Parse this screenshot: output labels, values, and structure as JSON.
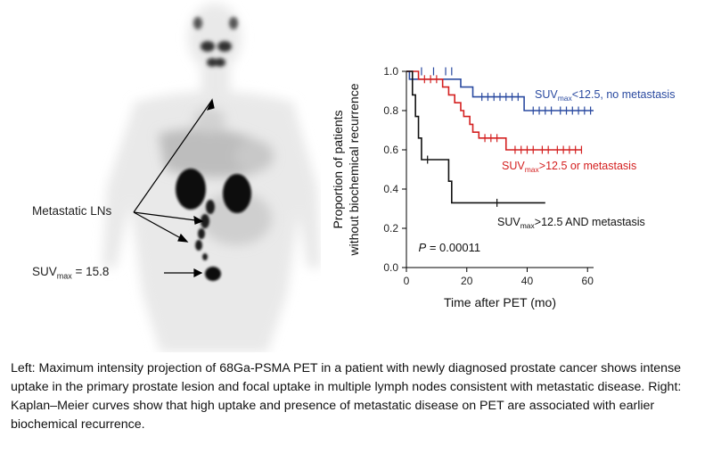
{
  "figure": {
    "left_panel": {
      "metastatic_label": "Metastatic LNs",
      "suv_label_main": "SUV",
      "suv_label_sub": "max",
      "suv_label_value": " = 15.8"
    },
    "caption": "Left: Maximum intensity projection of 68Ga-PSMA PET in a patient with newly diagnosed prostate cancer shows intense uptake in the primary prostate lesion and focal uptake in multiple lymph nodes consistent with metastatic disease. Right: Kaplan–Meier curves show that high uptake and presence of metastatic disease on PET are associated with earlier biochemical recurrence."
  },
  "chart_data": {
    "type": "line",
    "subtype": "kaplan-meier",
    "title": "",
    "xlabel": "Time after PET (mo)",
    "ylabel_line1": "Proportion of patients",
    "ylabel_line2": "without biochemical recurrence",
    "xlim": [
      0,
      62
    ],
    "ylim": [
      0,
      1.0
    ],
    "xticks": [
      0,
      20,
      40,
      60
    ],
    "yticks": [
      0.0,
      0.2,
      0.4,
      0.6,
      0.8,
      1.0
    ],
    "grid": false,
    "annotation": {
      "p_label": "P",
      "p_value": " = 0.00011"
    },
    "series": [
      {
        "name": "SUVmax<12.5, no metastasis",
        "label_main": "SUV",
        "label_sub": "max",
        "label_rest": "<12.5, no metastasis",
        "color": "#2a4aa0",
        "steps": [
          [
            0,
            1.0
          ],
          [
            1,
            0.96
          ],
          [
            18,
            0.92
          ],
          [
            22,
            0.87
          ],
          [
            39,
            0.8
          ],
          [
            62,
            0.8
          ]
        ],
        "censors": [
          [
            5,
            1.0
          ],
          [
            9,
            1.0
          ],
          [
            13,
            1.0
          ],
          [
            15,
            1.0
          ],
          [
            25,
            0.87
          ],
          [
            27,
            0.87
          ],
          [
            29,
            0.87
          ],
          [
            31,
            0.87
          ],
          [
            33,
            0.87
          ],
          [
            35,
            0.87
          ],
          [
            37,
            0.87
          ],
          [
            42,
            0.8
          ],
          [
            44,
            0.8
          ],
          [
            46,
            0.8
          ],
          [
            48,
            0.8
          ],
          [
            51,
            0.8
          ],
          [
            53,
            0.8
          ],
          [
            55,
            0.8
          ],
          [
            57,
            0.8
          ],
          [
            59,
            0.8
          ],
          [
            61,
            0.8
          ]
        ]
      },
      {
        "name": "SUVmax>12.5 or metastasis",
        "label_main": "SUV",
        "label_sub": "max",
        "label_rest": ">12.5 or metastasis",
        "color": "#d42020",
        "steps": [
          [
            0,
            1.0
          ],
          [
            4,
            0.96
          ],
          [
            12,
            0.92
          ],
          [
            14,
            0.88
          ],
          [
            16,
            0.84
          ],
          [
            18,
            0.8
          ],
          [
            19,
            0.77
          ],
          [
            21,
            0.73
          ],
          [
            22,
            0.69
          ],
          [
            24,
            0.66
          ],
          [
            33,
            0.6
          ],
          [
            58,
            0.6
          ]
        ],
        "censors": [
          [
            6,
            0.96
          ],
          [
            8,
            0.96
          ],
          [
            10,
            0.96
          ],
          [
            26,
            0.66
          ],
          [
            28,
            0.66
          ],
          [
            30,
            0.66
          ],
          [
            36,
            0.6
          ],
          [
            38,
            0.6
          ],
          [
            40,
            0.6
          ],
          [
            42,
            0.6
          ],
          [
            45,
            0.6
          ],
          [
            47,
            0.6
          ],
          [
            50,
            0.6
          ],
          [
            52,
            0.6
          ],
          [
            54,
            0.6
          ],
          [
            56,
            0.6
          ],
          [
            58,
            0.6
          ]
        ]
      },
      {
        "name": "SUVmax>12.5 AND metastasis",
        "label_main": "SUV",
        "label_sub": "max",
        "label_rest": ">12.5 AND metastasis",
        "color": "#111111",
        "steps": [
          [
            0,
            1.0
          ],
          [
            2,
            0.88
          ],
          [
            3,
            0.77
          ],
          [
            4,
            0.66
          ],
          [
            5,
            0.55
          ],
          [
            14,
            0.44
          ],
          [
            15,
            0.33
          ],
          [
            46,
            0.33
          ]
        ],
        "censors": [
          [
            7,
            0.55
          ],
          [
            30,
            0.33
          ]
        ]
      }
    ]
  }
}
